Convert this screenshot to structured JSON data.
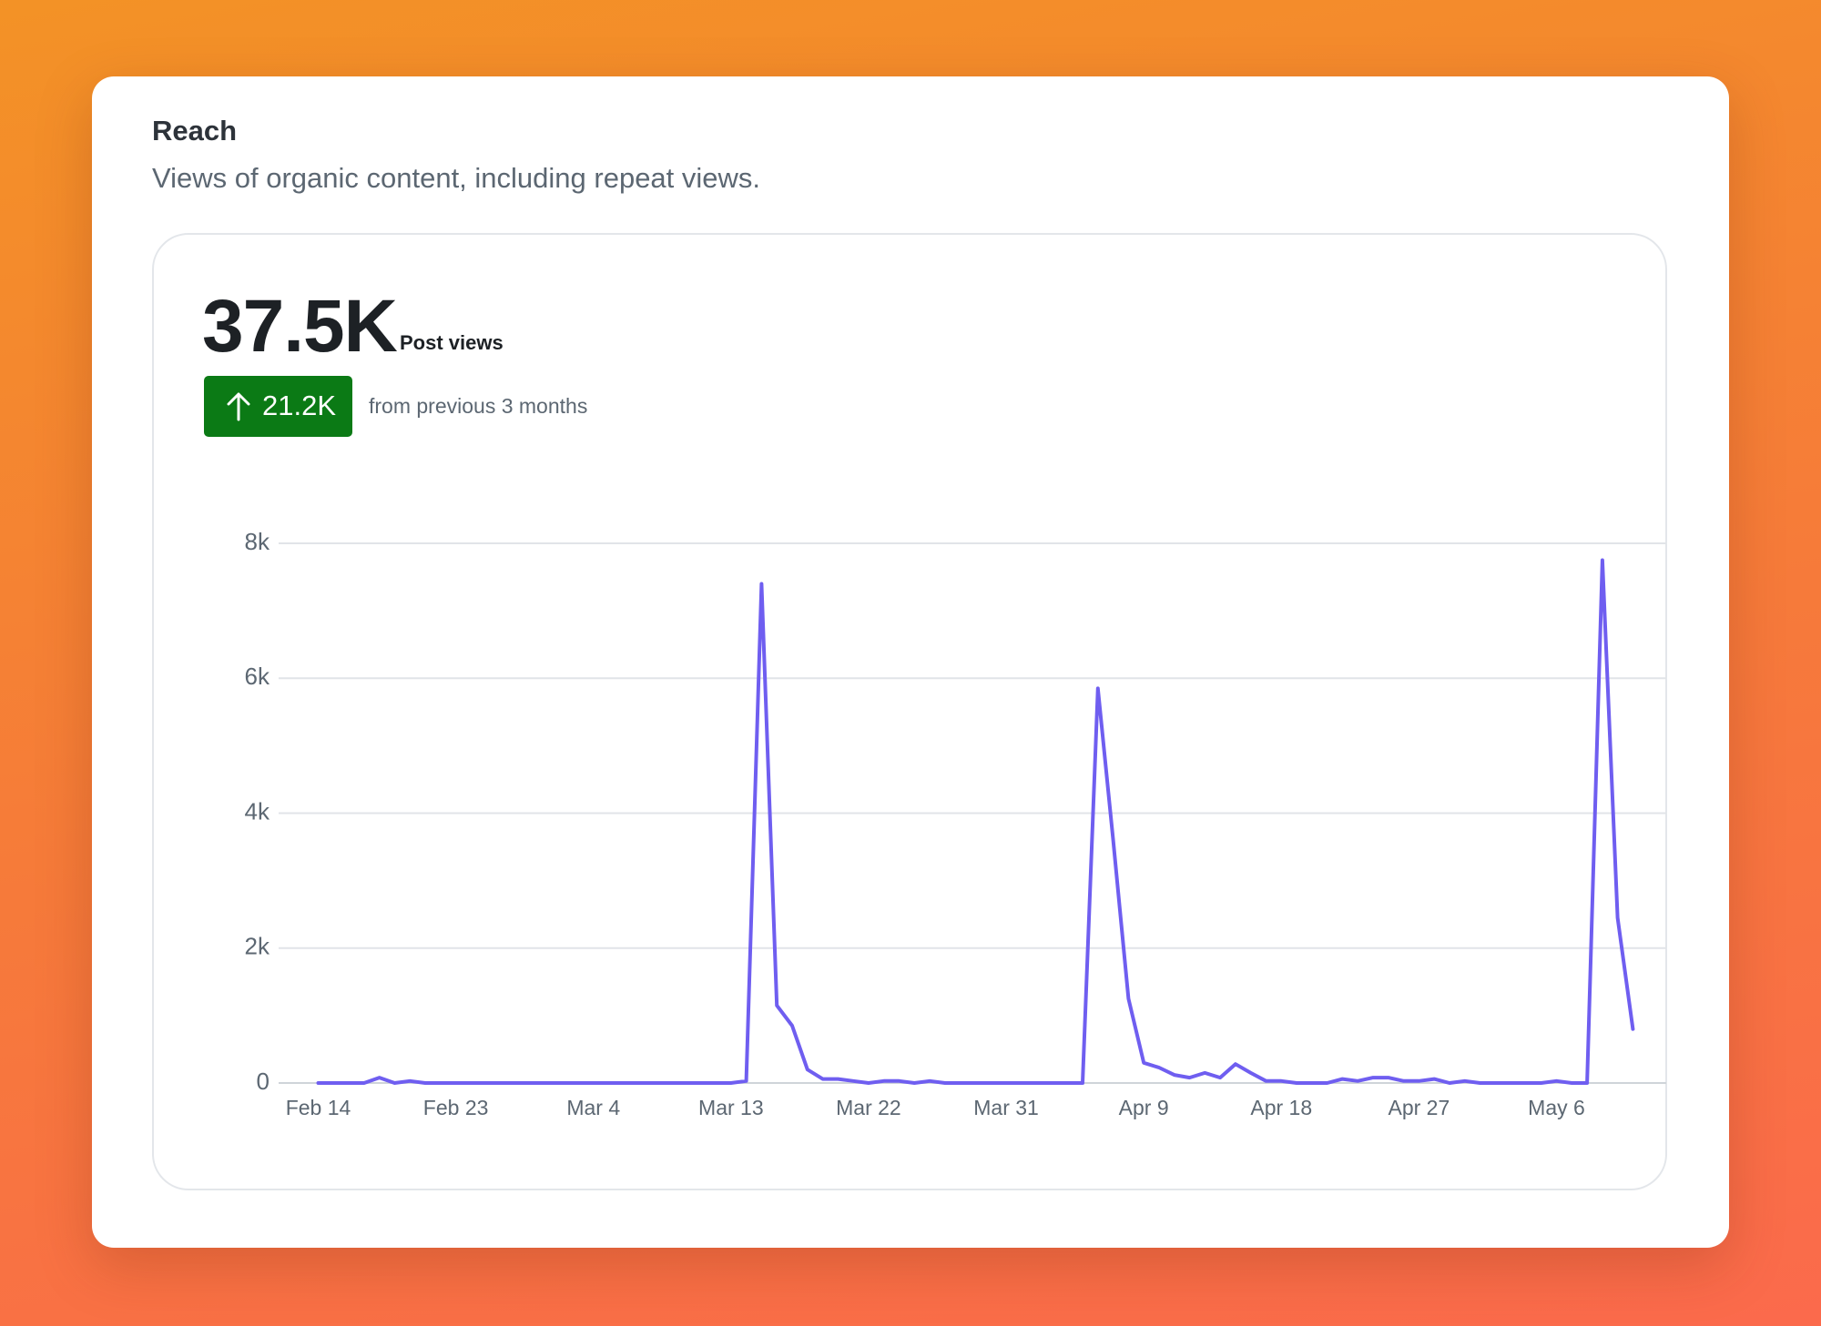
{
  "header": {
    "title": "Reach",
    "subtitle": "Views of organic content, including repeat views."
  },
  "metric": {
    "value": "37.5K",
    "label": "Post views",
    "change": "21.2K",
    "change_note": "from previous 3 months"
  },
  "chart_data": {
    "type": "line",
    "categories": [
      "Feb 14",
      null,
      null,
      null,
      null,
      null,
      null,
      null,
      null,
      "Feb 23",
      null,
      null,
      null,
      null,
      null,
      null,
      null,
      null,
      "Mar 4",
      null,
      null,
      null,
      null,
      null,
      null,
      null,
      null,
      "Mar 13",
      null,
      null,
      null,
      null,
      null,
      null,
      null,
      null,
      "Mar 22",
      null,
      null,
      null,
      null,
      null,
      null,
      null,
      null,
      "Mar 31",
      null,
      null,
      null,
      null,
      null,
      null,
      null,
      null,
      "Apr 9",
      null,
      null,
      null,
      null,
      null,
      null,
      null,
      null,
      "Apr 18",
      null,
      null,
      null,
      null,
      null,
      null,
      null,
      null,
      "Apr 27",
      null,
      null,
      null,
      null,
      null,
      null,
      null,
      null,
      "May 6",
      null,
      null,
      null,
      null,
      null
    ],
    "series": [
      {
        "name": "Post views",
        "color": "#6f5ef0",
        "values": [
          0,
          0,
          0,
          0,
          80,
          0,
          30,
          0,
          0,
          0,
          0,
          0,
          0,
          0,
          0,
          0,
          0,
          0,
          0,
          0,
          0,
          0,
          0,
          0,
          0,
          0,
          0,
          0,
          30,
          7400,
          1150,
          850,
          200,
          60,
          60,
          30,
          0,
          30,
          30,
          0,
          30,
          0,
          0,
          0,
          0,
          0,
          0,
          0,
          0,
          0,
          0,
          5850,
          3600,
          1250,
          300,
          230,
          120,
          80,
          150,
          80,
          280,
          150,
          30,
          30,
          0,
          0,
          0,
          60,
          30,
          80,
          80,
          30,
          30,
          60,
          0,
          30,
          0,
          0,
          0,
          0,
          0,
          30,
          0,
          0,
          7750,
          2450,
          800
        ]
      }
    ],
    "ylim": [
      0,
      8000
    ],
    "yticks": [
      0,
      {
        "value": 2000,
        "label": "2k"
      },
      {
        "value": 4000,
        "label": "4k"
      },
      {
        "value": 6000,
        "label": "6k"
      },
      {
        "value": 8000,
        "label": "8k"
      }
    ],
    "grid": true
  }
}
